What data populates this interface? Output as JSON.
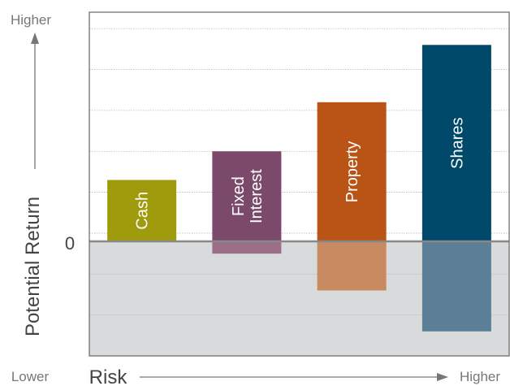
{
  "chart_data": {
    "type": "bar",
    "categories": [
      "Cash",
      "Fixed\nInterest",
      "Property",
      "Shares"
    ],
    "positive_values": [
      1.5,
      2.2,
      3.4,
      4.8
    ],
    "negative_values": [
      0,
      -0.3,
      -1.2,
      -2.2
    ],
    "ylim": [
      -2.8,
      5.6
    ],
    "zero_label": "0",
    "y_axis": {
      "label": "Potential Return",
      "top_label": "Higher"
    },
    "x_axis": {
      "label": "Risk",
      "left_label": "Lower",
      "right_label": "Higher"
    },
    "grid": true,
    "colors": {
      "positive": [
        "#a09a0d",
        "#7b4a6a",
        "#b95316",
        "#00496b"
      ],
      "negative": [
        "#a09a0d",
        "#9b6f88",
        "#c98a62",
        "#5a7f97"
      ],
      "negative_region": "#d9dadb",
      "zero_line": "#888888",
      "grid": "#b5b5b5",
      "frame": "#666666",
      "axis_text": "#777777",
      "label_text": "#ffffff"
    }
  }
}
